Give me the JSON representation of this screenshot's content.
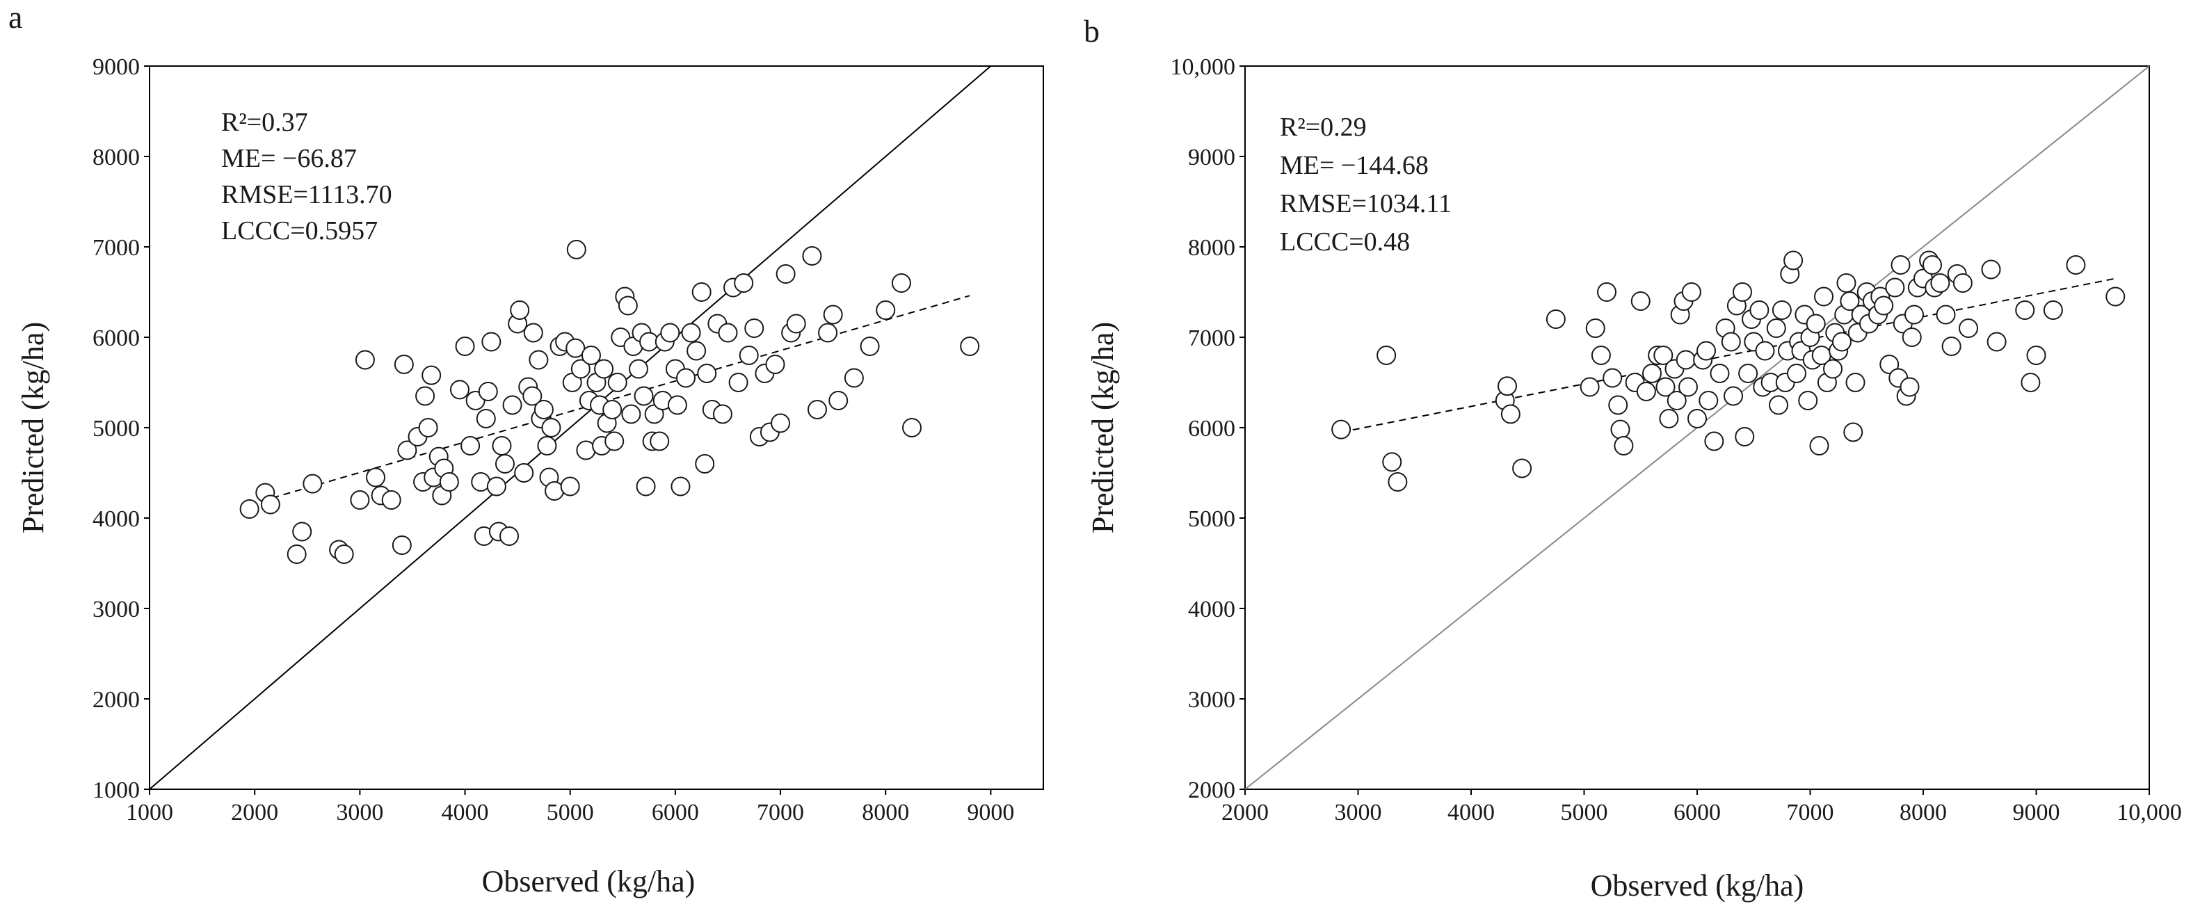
{
  "colors": {
    "ink": "#1a1a1a",
    "marker_fill": "#ffffff",
    "frame": "#000000",
    "diag_b": "#888888"
  },
  "chart_data": [
    {
      "type": "scatter",
      "panel_label": "a",
      "xlabel": "Observed (kg/ha)",
      "ylabel": "Predicted (kg/ha)",
      "xlim": [
        1000,
        9500
      ],
      "ylim": [
        1000,
        9000
      ],
      "xticks": [
        1000,
        2000,
        3000,
        4000,
        5000,
        6000,
        7000,
        8000,
        9000
      ],
      "xtick_labels": [
        "1000",
        "2000",
        "3000",
        "4000",
        "5000",
        "6000",
        "7000",
        "8000",
        "9000"
      ],
      "yticks": [
        1000,
        2000,
        3000,
        4000,
        5000,
        6000,
        7000,
        8000,
        9000
      ],
      "ytick_labels": [
        "1000",
        "2000",
        "3000",
        "4000",
        "5000",
        "6000",
        "7000",
        "8000",
        "9000"
      ],
      "stats": {
        "r2": "R²=0.37",
        "me": "ME=   −66.87",
        "rmse": "RMSE=1113.70",
        "lccc": "LCCC=0.5957"
      },
      "one_to_one_line": true,
      "trend_line": {
        "x": [
          1950,
          8800
        ],
        "y": [
          4150,
          6460
        ]
      },
      "points": [
        [
          1950,
          4100
        ],
        [
          2100,
          4280
        ],
        [
          2150,
          4150
        ],
        [
          2400,
          3600
        ],
        [
          2450,
          3850
        ],
        [
          2550,
          4380
        ],
        [
          2800,
          3650
        ],
        [
          2850,
          3600
        ],
        [
          3000,
          4200
        ],
        [
          3050,
          5750
        ],
        [
          3150,
          4450
        ],
        [
          3200,
          4250
        ],
        [
          3300,
          4200
        ],
        [
          3400,
          3700
        ],
        [
          3420,
          5700
        ],
        [
          3450,
          4750
        ],
        [
          3550,
          4900
        ],
        [
          3600,
          4400
        ],
        [
          3620,
          5350
        ],
        [
          3650,
          5000
        ],
        [
          3680,
          5580
        ],
        [
          3700,
          4450
        ],
        [
          3750,
          4680
        ],
        [
          3780,
          4250
        ],
        [
          3800,
          4550
        ],
        [
          3850,
          4400
        ],
        [
          3950,
          5420
        ],
        [
          4000,
          5900
        ],
        [
          4050,
          4800
        ],
        [
          4100,
          5300
        ],
        [
          4150,
          4400
        ],
        [
          4180,
          3800
        ],
        [
          4200,
          5100
        ],
        [
          4220,
          5400
        ],
        [
          4250,
          5950
        ],
        [
          4300,
          4350
        ],
        [
          4320,
          3850
        ],
        [
          4350,
          4800
        ],
        [
          4380,
          4600
        ],
        [
          4420,
          3800
        ],
        [
          4450,
          5250
        ],
        [
          4500,
          6150
        ],
        [
          4520,
          6300
        ],
        [
          4560,
          4500
        ],
        [
          4600,
          5450
        ],
        [
          4640,
          5350
        ],
        [
          4650,
          6050
        ],
        [
          4700,
          5750
        ],
        [
          4720,
          5100
        ],
        [
          4750,
          5200
        ],
        [
          4780,
          4800
        ],
        [
          4800,
          4450
        ],
        [
          4820,
          5000
        ],
        [
          4850,
          4300
        ],
        [
          4900,
          5900
        ],
        [
          4950,
          5950
        ],
        [
          5000,
          4350
        ],
        [
          5020,
          5500
        ],
        [
          5050,
          5880
        ],
        [
          5060,
          6970
        ],
        [
          5100,
          5650
        ],
        [
          5150,
          4750
        ],
        [
          5180,
          5300
        ],
        [
          5200,
          5800
        ],
        [
          5250,
          5500
        ],
        [
          5280,
          5250
        ],
        [
          5300,
          4800
        ],
        [
          5320,
          5650
        ],
        [
          5350,
          5050
        ],
        [
          5400,
          5200
        ],
        [
          5420,
          4850
        ],
        [
          5450,
          5500
        ],
        [
          5480,
          6000
        ],
        [
          5520,
          6450
        ],
        [
          5550,
          6350
        ],
        [
          5580,
          5150
        ],
        [
          5600,
          5900
        ],
        [
          5650,
          5650
        ],
        [
          5680,
          6050
        ],
        [
          5700,
          5350
        ],
        [
          5720,
          4350
        ],
        [
          5750,
          5950
        ],
        [
          5780,
          4850
        ],
        [
          5800,
          5150
        ],
        [
          5850,
          4850
        ],
        [
          5880,
          5300
        ],
        [
          5900,
          5950
        ],
        [
          5950,
          6050
        ],
        [
          6000,
          5650
        ],
        [
          6020,
          5250
        ],
        [
          6050,
          4350
        ],
        [
          6100,
          5550
        ],
        [
          6150,
          6050
        ],
        [
          6200,
          5850
        ],
        [
          6250,
          6500
        ],
        [
          6280,
          4600
        ],
        [
          6300,
          5600
        ],
        [
          6350,
          5200
        ],
        [
          6400,
          6150
        ],
        [
          6450,
          5150
        ],
        [
          6500,
          6050
        ],
        [
          6550,
          6550
        ],
        [
          6600,
          5500
        ],
        [
          6650,
          6600
        ],
        [
          6700,
          5800
        ],
        [
          6750,
          6100
        ],
        [
          6800,
          4900
        ],
        [
          6850,
          5600
        ],
        [
          6900,
          4950
        ],
        [
          6950,
          5700
        ],
        [
          7000,
          5050
        ],
        [
          7050,
          6700
        ],
        [
          7100,
          6050
        ],
        [
          7150,
          6150
        ],
        [
          7300,
          6900
        ],
        [
          7350,
          5200
        ],
        [
          7450,
          6050
        ],
        [
          7500,
          6250
        ],
        [
          7550,
          5300
        ],
        [
          7700,
          5550
        ],
        [
          7850,
          5900
        ],
        [
          8000,
          6300
        ],
        [
          8150,
          6600
        ],
        [
          8250,
          5000
        ],
        [
          8800,
          5900
        ]
      ]
    },
    {
      "type": "scatter",
      "panel_label": "b",
      "xlabel": "Observed (kg/ha)",
      "ylabel": "Predicted (kg/ha)",
      "xlim": [
        2000,
        10000
      ],
      "ylim": [
        2000,
        10000
      ],
      "xticks": [
        2000,
        3000,
        4000,
        5000,
        6000,
        7000,
        8000,
        9000,
        10000
      ],
      "xtick_labels": [
        "2000",
        "3000",
        "4000",
        "5000",
        "6000",
        "7000",
        "8000",
        "9000",
        "10,000"
      ],
      "yticks": [
        2000,
        3000,
        4000,
        5000,
        6000,
        7000,
        8000,
        9000,
        10000
      ],
      "ytick_labels": [
        "2000",
        "3000",
        "4000",
        "5000",
        "6000",
        "7000",
        "8000",
        "9000",
        "10,000"
      ],
      "stats": {
        "r2": "R²=0.29",
        "me": "ME=  −144.68",
        "rmse": "RMSE=1034.11",
        "lccc": "LCCC=0.48"
      },
      "one_to_one_line": true,
      "trend_line": {
        "x": [
          2850,
          9700
        ],
        "y": [
          5950,
          7650
        ]
      },
      "points": [
        [
          2850,
          5980
        ],
        [
          3250,
          6800
        ],
        [
          3300,
          5620
        ],
        [
          3350,
          5400
        ],
        [
          4300,
          6300
        ],
        [
          4320,
          6460
        ],
        [
          4350,
          6150
        ],
        [
          4450,
          5550
        ],
        [
          4750,
          7200
        ],
        [
          5050,
          6450
        ],
        [
          5100,
          7100
        ],
        [
          5150,
          6800
        ],
        [
          5200,
          7500
        ],
        [
          5250,
          6550
        ],
        [
          5300,
          6250
        ],
        [
          5320,
          5980
        ],
        [
          5350,
          5800
        ],
        [
          5450,
          6500
        ],
        [
          5500,
          7400
        ],
        [
          5550,
          6400
        ],
        [
          5600,
          6600
        ],
        [
          5650,
          6800
        ],
        [
          5700,
          6800
        ],
        [
          5720,
          6450
        ],
        [
          5750,
          6100
        ],
        [
          5800,
          6650
        ],
        [
          5820,
          6300
        ],
        [
          5850,
          7250
        ],
        [
          5880,
          7400
        ],
        [
          5900,
          6750
        ],
        [
          5920,
          6450
        ],
        [
          5950,
          7500
        ],
        [
          6000,
          6100
        ],
        [
          6050,
          6750
        ],
        [
          6080,
          6850
        ],
        [
          6100,
          6300
        ],
        [
          6150,
          5850
        ],
        [
          6200,
          6600
        ],
        [
          6250,
          7100
        ],
        [
          6300,
          6950
        ],
        [
          6320,
          6350
        ],
        [
          6350,
          7350
        ],
        [
          6400,
          7500
        ],
        [
          6420,
          5900
        ],
        [
          6450,
          6600
        ],
        [
          6480,
          7200
        ],
        [
          6500,
          6950
        ],
        [
          6550,
          7300
        ],
        [
          6580,
          6450
        ],
        [
          6600,
          6850
        ],
        [
          6650,
          6500
        ],
        [
          6700,
          7100
        ],
        [
          6720,
          6250
        ],
        [
          6750,
          7300
        ],
        [
          6780,
          6500
        ],
        [
          6800,
          6850
        ],
        [
          6820,
          7700
        ],
        [
          6850,
          7850
        ],
        [
          6880,
          6600
        ],
        [
          6900,
          6950
        ],
        [
          6920,
          6850
        ],
        [
          6950,
          7250
        ],
        [
          6980,
          6300
        ],
        [
          7000,
          7000
        ],
        [
          7020,
          6750
        ],
        [
          7050,
          7150
        ],
        [
          7080,
          5800
        ],
        [
          7100,
          6800
        ],
        [
          7120,
          7450
        ],
        [
          7150,
          6500
        ],
        [
          7200,
          6650
        ],
        [
          7220,
          7050
        ],
        [
          7250,
          6850
        ],
        [
          7280,
          6950
        ],
        [
          7300,
          7250
        ],
        [
          7320,
          7600
        ],
        [
          7350,
          7400
        ],
        [
          7380,
          5950
        ],
        [
          7400,
          6500
        ],
        [
          7420,
          7050
        ],
        [
          7450,
          7250
        ],
        [
          7500,
          7500
        ],
        [
          7520,
          7150
        ],
        [
          7550,
          7400
        ],
        [
          7600,
          7250
        ],
        [
          7620,
          7450
        ],
        [
          7650,
          7350
        ],
        [
          7700,
          6700
        ],
        [
          7750,
          7550
        ],
        [
          7780,
          6550
        ],
        [
          7800,
          7800
        ],
        [
          7820,
          7150
        ],
        [
          7850,
          6350
        ],
        [
          7880,
          6450
        ],
        [
          7900,
          7000
        ],
        [
          7920,
          7250
        ],
        [
          7950,
          7550
        ],
        [
          8000,
          7650
        ],
        [
          8050,
          7850
        ],
        [
          8080,
          7800
        ],
        [
          8100,
          7550
        ],
        [
          8150,
          7600
        ],
        [
          8200,
          7250
        ],
        [
          8250,
          6900
        ],
        [
          8300,
          7700
        ],
        [
          8350,
          7600
        ],
        [
          8400,
          7100
        ],
        [
          8600,
          7750
        ],
        [
          8650,
          6950
        ],
        [
          8900,
          7300
        ],
        [
          8950,
          6500
        ],
        [
          9000,
          6800
        ],
        [
          9150,
          7300
        ],
        [
          9350,
          7800
        ],
        [
          9700,
          7450
        ]
      ]
    }
  ]
}
